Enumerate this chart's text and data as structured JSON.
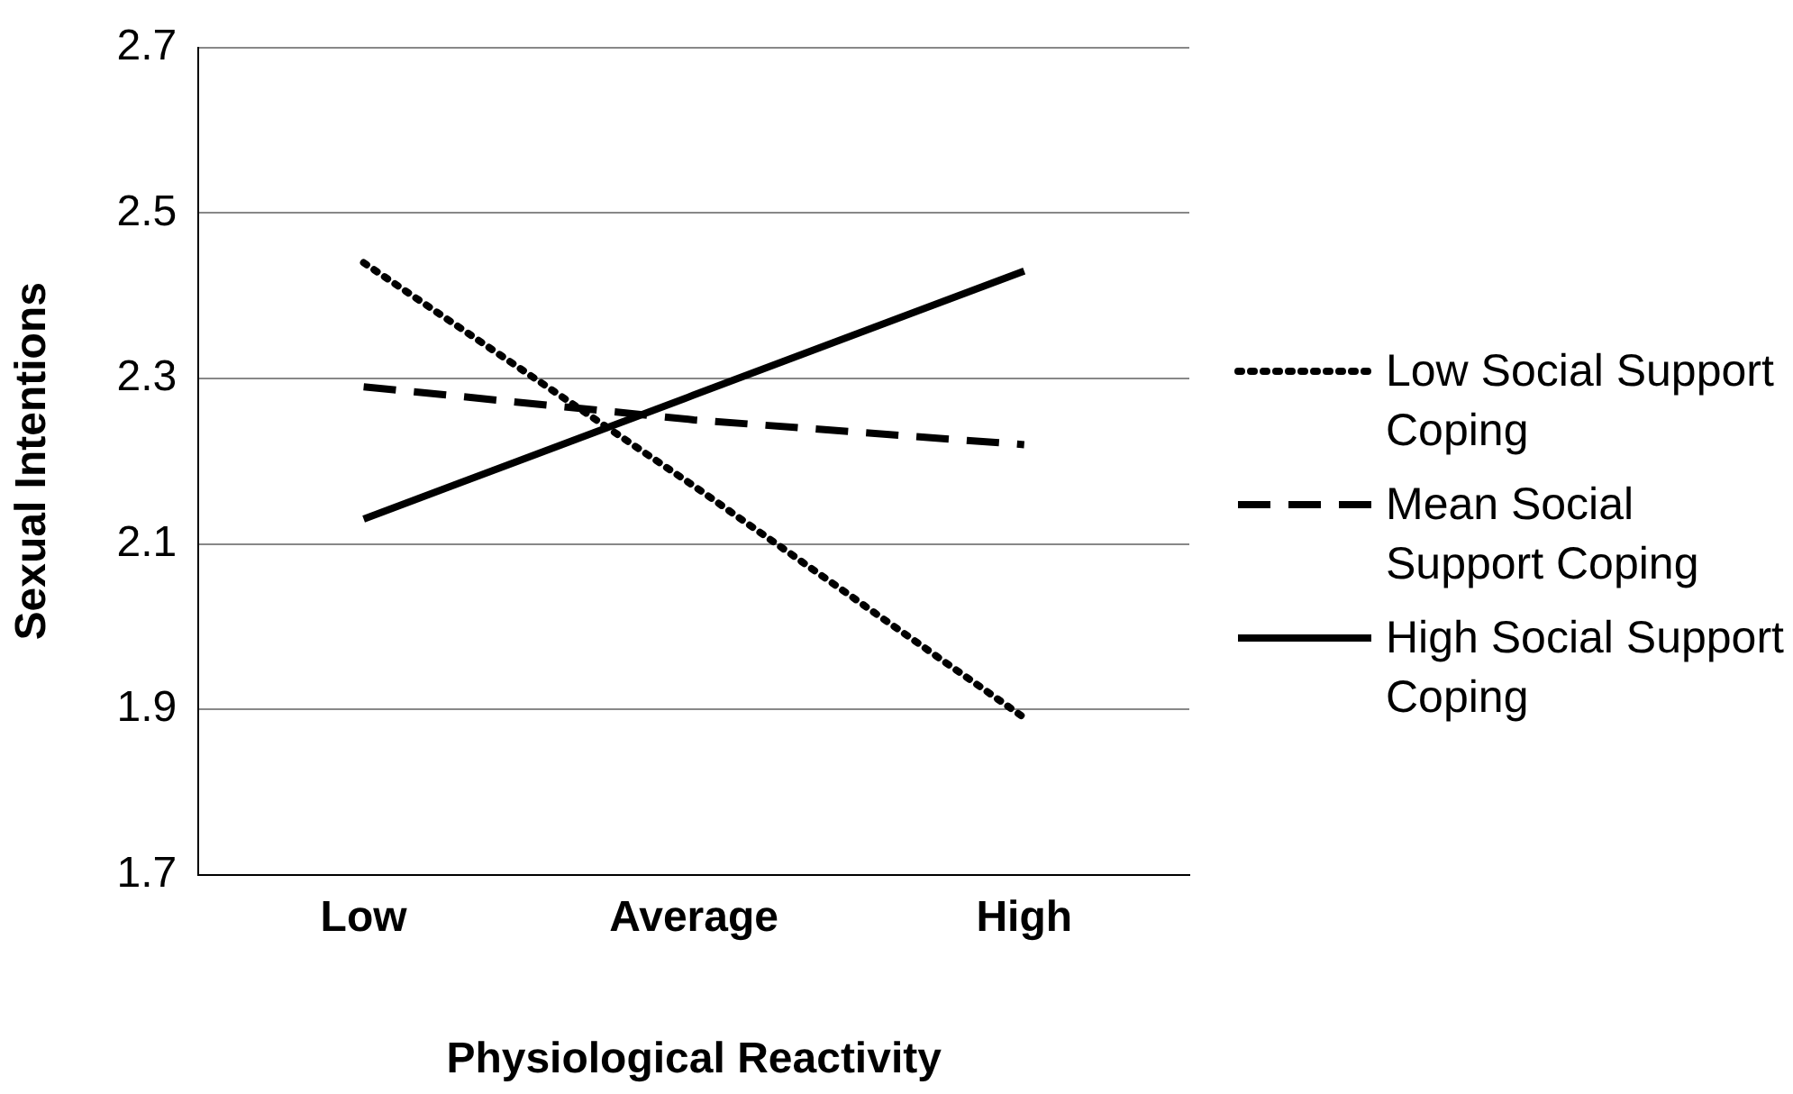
{
  "chart_data": {
    "type": "line",
    "xlabel": "Physiological Reactivity",
    "ylabel": "Sexual Intentions",
    "categories": [
      "Low",
      "Average",
      "High"
    ],
    "series": [
      {
        "name": "Low Social Support Coping",
        "color": "#000000",
        "line_style": "dotted",
        "values": [
          2.44,
          2.17,
          1.89
        ]
      },
      {
        "name": "Mean Social Support Coping",
        "color": "#000000",
        "line_style": "dashed",
        "values": [
          2.29,
          2.25,
          2.22
        ]
      },
      {
        "name": "High Social Support Coping",
        "color": "#000000",
        "line_style": "solid",
        "values": [
          2.13,
          2.28,
          2.43
        ]
      }
    ],
    "ylim": [
      1.7,
      2.7
    ],
    "yticks": [
      1.7,
      1.9,
      2.1,
      2.3,
      2.5,
      2.7
    ],
    "grid": "y",
    "legend": "right",
    "marker": "none"
  }
}
